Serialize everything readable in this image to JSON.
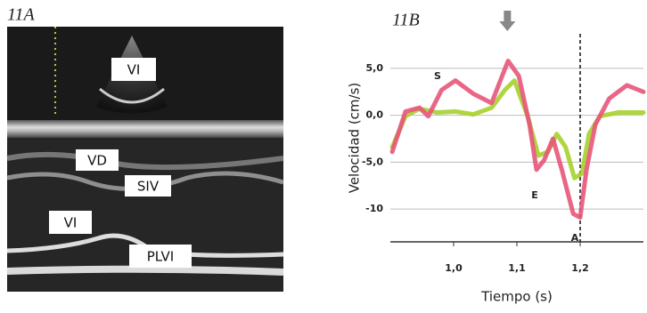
{
  "panel_a": {
    "label": "11A",
    "labels": [
      "VI",
      "VD",
      "SIV",
      "VI",
      "PLVI"
    ]
  },
  "chart_data": {
    "type": "line",
    "panel_label": "11B",
    "x_label": "Tiempo (s)",
    "y_label": "Velocidad (cm/s)",
    "xlim": [
      0.9,
      1.3
    ],
    "ylim": [
      -13.5,
      8.5
    ],
    "xticks": [
      {
        "value": 1.0,
        "label": "1,0"
      },
      {
        "value": 1.1,
        "label": "1,1"
      },
      {
        "value": 1.2,
        "label": "1,2"
      }
    ],
    "yticks": [
      {
        "value": 5,
        "label": "5,0"
      },
      {
        "value": 0,
        "label": "0,0"
      },
      {
        "value": -5,
        "label": "-5,0"
      },
      -10
    ],
    "grid": true,
    "series": [
      {
        "color": "#e8557a",
        "x": [
          0.903,
          0.924,
          0.946,
          0.96,
          0.981,
          1.003,
          1.031,
          1.06,
          1.086,
          1.103,
          1.12,
          1.131,
          1.143,
          1.157,
          1.171,
          1.189,
          1.2,
          1.21,
          1.224,
          1.246,
          1.274,
          1.3
        ],
        "values": [
          -3.9,
          0.4,
          0.8,
          -0.1,
          2.7,
          3.7,
          2.3,
          1.3,
          5.8,
          4.2,
          -1,
          -5.8,
          -4.8,
          -2.5,
          -5.8,
          -10.5,
          -10.9,
          -5.8,
          -1,
          1.8,
          3.2,
          2.5
        ]
      },
      {
        "color": "#a6d12c",
        "x": [
          0.903,
          0.924,
          0.946,
          0.974,
          1.003,
          1.031,
          1.06,
          1.081,
          1.096,
          1.117,
          1.134,
          1.149,
          1.163,
          1.177,
          1.191,
          1.203,
          1.214,
          1.231,
          1.26,
          1.3
        ],
        "values": [
          -3.4,
          -0.1,
          0.7,
          0.3,
          0.4,
          0.1,
          0.8,
          2.7,
          3.7,
          -0.1,
          -4.3,
          -3.9,
          -2,
          -3.4,
          -6.7,
          -6.2,
          -2,
          -0.1,
          0.3,
          0.3
        ]
      }
    ],
    "annotations": [
      "S",
      "E",
      "A"
    ],
    "arrow_x": 1.085,
    "marker_line_x": 1.2
  }
}
